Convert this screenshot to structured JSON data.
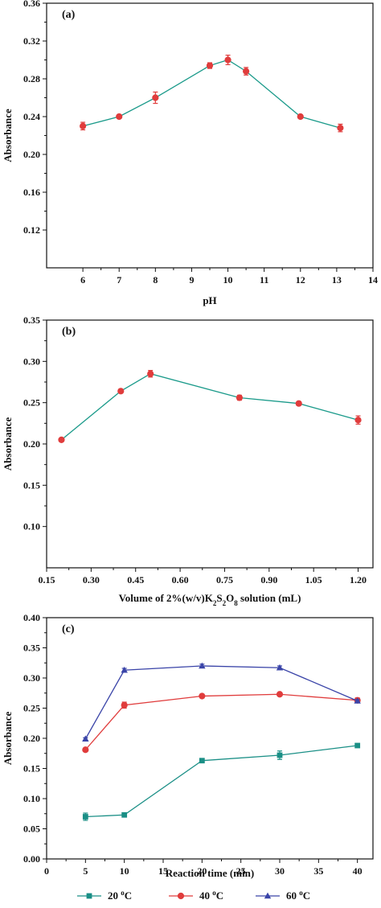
{
  "chart_data": [
    {
      "type": "line",
      "panel_label": "(a)",
      "xlabel": "pH",
      "ylabel": "Absorbance",
      "xlim": [
        5,
        14
      ],
      "ylim": [
        0.08,
        0.36
      ],
      "xticks": [
        6,
        7,
        8,
        9,
        10,
        11,
        12,
        13,
        14
      ],
      "yticks": [
        0.12,
        0.16,
        0.2,
        0.24,
        0.28,
        0.32,
        0.36
      ],
      "xtick_labels": [
        "6",
        "7",
        "8",
        "9",
        "10",
        "11",
        "12",
        "13",
        "14"
      ],
      "ytick_labels": [
        "0.12",
        "0.16",
        "0.20",
        "0.24",
        "0.28",
        "0.32",
        "0.36"
      ],
      "series": [
        {
          "color": "#e03c3c",
          "line_color": "#1a9a8a",
          "marker": "circle",
          "x": [
            6,
            7,
            8,
            9.5,
            10,
            10.5,
            12,
            13.1
          ],
          "y": [
            0.23,
            0.24,
            0.26,
            0.294,
            0.3,
            0.288,
            0.24,
            0.228
          ],
          "err": [
            0.004,
            0.002,
            0.006,
            0.003,
            0.005,
            0.004,
            0.002,
            0.004
          ]
        }
      ]
    },
    {
      "type": "line",
      "panel_label": "(b)",
      "xlabel_parts": [
        "Volume of 2%(w/v)K",
        "2",
        "S",
        "2",
        "O",
        "8",
        " solution (mL)"
      ],
      "ylabel": "Absorbance",
      "xlim": [
        0.15,
        1.25
      ],
      "ylim": [
        0.05,
        0.35
      ],
      "xticks": [
        0.15,
        0.3,
        0.45,
        0.6,
        0.75,
        0.9,
        1.05,
        1.2
      ],
      "yticks": [
        0.1,
        0.15,
        0.2,
        0.25,
        0.3,
        0.35
      ],
      "xtick_labels": [
        "0.15",
        "0.30",
        "0.45",
        "0.60",
        "0.75",
        "0.90",
        "1.05",
        "1.20"
      ],
      "ytick_labels": [
        "0.10",
        "0.15",
        "0.20",
        "0.25",
        "0.30",
        "0.35"
      ],
      "series": [
        {
          "color": "#e03c3c",
          "line_color": "#1a9a8a",
          "marker": "circle",
          "x": [
            0.2,
            0.4,
            0.5,
            0.8,
            1.0,
            1.2
          ],
          "y": [
            0.205,
            0.264,
            0.285,
            0.256,
            0.249,
            0.229
          ],
          "err": [
            0.002,
            0.002,
            0.004,
            0.003,
            0.002,
            0.005
          ]
        }
      ]
    },
    {
      "type": "line",
      "panel_label": "(c)",
      "xlabel": "Reaction time (min)",
      "ylabel": "Absorbance",
      "xlim": [
        0,
        42
      ],
      "ylim": [
        0.0,
        0.4
      ],
      "xticks": [
        0,
        5,
        10,
        15,
        20,
        25,
        30,
        35,
        40
      ],
      "yticks": [
        0.0,
        0.05,
        0.1,
        0.15,
        0.2,
        0.25,
        0.3,
        0.35,
        0.4
      ],
      "xtick_labels": [
        "0",
        "5",
        "10",
        "15",
        "20",
        "25",
        "30",
        "35",
        "40"
      ],
      "ytick_labels": [
        "0.00",
        "0.05",
        "0.10",
        "0.15",
        "0.20",
        "0.25",
        "0.30",
        "0.35",
        "0.40"
      ],
      "series": [
        {
          "name_parts": [
            "20 ",
            "o",
            "C"
          ],
          "color": "#1a8f86",
          "marker": "square",
          "x": [
            5,
            10,
            20,
            30,
            40
          ],
          "y": [
            0.07,
            0.073,
            0.163,
            0.172,
            0.188
          ],
          "err": [
            0.006,
            0.003,
            0.002,
            0.007,
            0.003
          ]
        },
        {
          "name_parts": [
            "40 ",
            "o",
            "C"
          ],
          "color": "#e03c3c",
          "marker": "circle",
          "x": [
            5,
            10,
            20,
            30,
            40
          ],
          "y": [
            0.181,
            0.255,
            0.27,
            0.273,
            0.263
          ],
          "err": [
            0.002,
            0.005,
            0.003,
            0.002,
            0.004
          ]
        },
        {
          "name_parts": [
            "60 ",
            "o",
            "C"
          ],
          "color": "#3a44a8",
          "marker": "triangle",
          "x": [
            5,
            10,
            20,
            30,
            40
          ],
          "y": [
            0.199,
            0.313,
            0.32,
            0.317,
            0.262
          ],
          "err": [
            0.002,
            0.003,
            0.003,
            0.003,
            0.002
          ]
        }
      ],
      "legend_position": "bottom"
    }
  ]
}
